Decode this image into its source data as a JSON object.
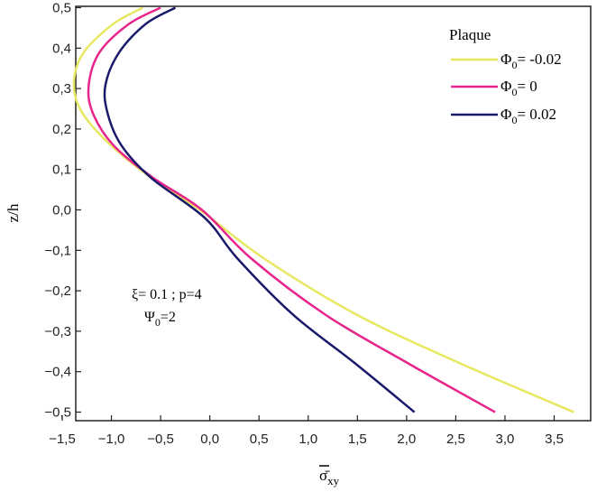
{
  "chart_data": {
    "type": "line",
    "title": "",
    "xlabel": "σ̄",
    "xlabel_sub": "xy",
    "ylabel": "z/h",
    "xlim": [
      -1.5,
      3.8
    ],
    "ylim": [
      -0.52,
      0.5
    ],
    "x_ticks": [
      -1.5,
      -1.0,
      -0.5,
      0.0,
      0.5,
      1.0,
      1.5,
      2.0,
      2.5,
      3.0,
      3.5
    ],
    "x_tick_labels": [
      "−1,5",
      "−1,0",
      "−0,5",
      "0,0",
      "0,5",
      "1,0",
      "1,5",
      "2,0",
      "2,5",
      "3,0",
      "3,5"
    ],
    "y_ticks": [
      0.5,
      0.4,
      0.3,
      0.2,
      0.1,
      0.0,
      -0.1,
      -0.2,
      -0.3,
      -0.4,
      -0.5
    ],
    "y_tick_labels": [
      "0,5",
      "0,4",
      "0,3",
      "0,2",
      "0,1",
      "0,0",
      "−0,1",
      "−0,2",
      "−0,3",
      "−0,4",
      "−0,5"
    ],
    "grid": false,
    "legend_title": "Plaque",
    "legend_position": "top-right",
    "series": [
      {
        "name_main": "Φ",
        "name_sub": "0",
        "name_tail": "= -0.02",
        "color": "#e6e860",
        "points": [
          {
            "x": 3.7,
            "y": -0.5
          },
          {
            "x": 2.55,
            "y": -0.38
          },
          {
            "x": 1.5,
            "y": -0.26
          },
          {
            "x": 0.55,
            "y": -0.12
          },
          {
            "x": -0.1,
            "y": 0.0
          },
          {
            "x": -0.6,
            "y": 0.08
          },
          {
            "x": -1.05,
            "y": 0.17
          },
          {
            "x": -1.32,
            "y": 0.25
          },
          {
            "x": -1.38,
            "y": 0.32
          },
          {
            "x": -1.28,
            "y": 0.39
          },
          {
            "x": -0.98,
            "y": 0.46
          },
          {
            "x": -0.68,
            "y": 0.5
          }
        ]
      },
      {
        "name_main": "Φ",
        "name_sub": "0",
        "name_tail": "= 0",
        "color": "#e8258c",
        "points": [
          {
            "x": 2.9,
            "y": -0.5
          },
          {
            "x": 2.02,
            "y": -0.38
          },
          {
            "x": 1.18,
            "y": -0.26
          },
          {
            "x": 0.42,
            "y": -0.12
          },
          {
            "x": -0.08,
            "y": 0.0
          },
          {
            "x": -0.58,
            "y": 0.08
          },
          {
            "x": -0.98,
            "y": 0.16
          },
          {
            "x": -1.19,
            "y": 0.24
          },
          {
            "x": -1.23,
            "y": 0.31
          },
          {
            "x": -1.12,
            "y": 0.39
          },
          {
            "x": -0.82,
            "y": 0.46
          },
          {
            "x": -0.5,
            "y": 0.5
          }
        ]
      },
      {
        "name_main": "Φ",
        "name_sub": "0",
        "name_tail": "= 0.02",
        "color": "#1a1a6b",
        "points": [
          {
            "x": 2.08,
            "y": -0.5
          },
          {
            "x": 1.48,
            "y": -0.38
          },
          {
            "x": 0.85,
            "y": -0.26
          },
          {
            "x": 0.28,
            "y": -0.12
          },
          {
            "x": -0.05,
            "y": -0.02
          },
          {
            "x": -0.6,
            "y": 0.08
          },
          {
            "x": -0.9,
            "y": 0.16
          },
          {
            "x": -1.04,
            "y": 0.24
          },
          {
            "x": -1.06,
            "y": 0.31
          },
          {
            "x": -0.92,
            "y": 0.39
          },
          {
            "x": -0.65,
            "y": 0.46
          },
          {
            "x": -0.35,
            "y": 0.5
          }
        ]
      }
    ],
    "annotation": {
      "line1": "ξ= 0.1 ; p=4",
      "line2_main": "Ψ",
      "line2_sub": "0",
      "line2_tail": "=2"
    }
  }
}
